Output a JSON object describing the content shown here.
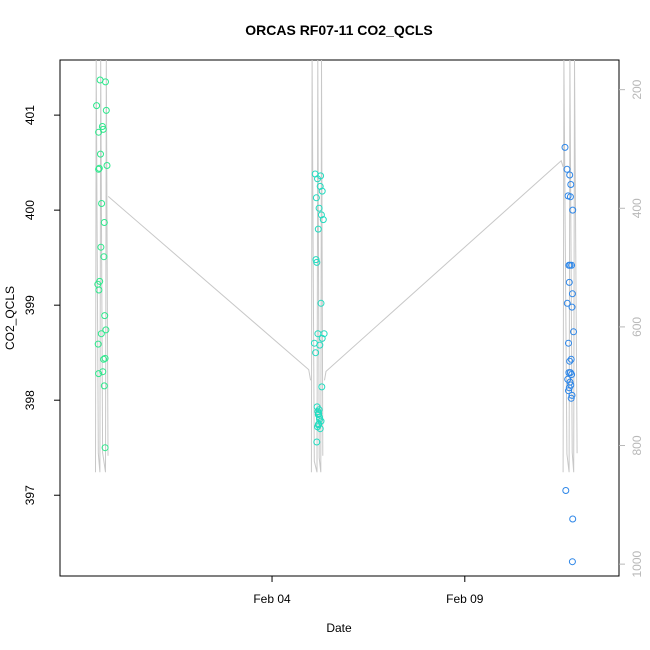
{
  "chart_data": {
    "type": "scatter",
    "title": "ORCAS RF07-11 CO2_QCLS",
    "xlabel": "Date",
    "ylabel": "CO2_QCLS",
    "x_ticks": [
      "Feb 04",
      "Feb 09"
    ],
    "x_tick_days": [
      4,
      9
    ],
    "xlim": [
      -1.5,
      13.0
    ],
    "ylim": [
      396.15,
      401.58
    ],
    "y_ticks": [
      397,
      398,
      399,
      400,
      401
    ],
    "y2_ticks": [
      200,
      400,
      600,
      800,
      1000
    ],
    "y2_lim": [
      1020,
      150
    ],
    "grid": false,
    "legend": "none",
    "colors": {
      "rf07": "#2ee88c",
      "rf08": "#22dcc0",
      "rf09": "#2d86e8",
      "pressure_line": "#c8c8c8"
    },
    "series": [
      {
        "x": [
          -0.55,
          -0.5,
          -0.45,
          -0.5,
          -0.48,
          -0.46,
          -0.38,
          -0.32,
          -0.4,
          -0.42,
          -0.35,
          -0.28,
          -0.44,
          -0.36,
          -0.3,
          -0.52,
          -0.49,
          -0.47,
          -0.34,
          -0.33,
          -0.37,
          -0.31,
          -0.51,
          -0.43,
          -0.39,
          -0.35,
          -0.33,
          -0.5
        ],
        "y": [
          401.1,
          400.82,
          400.59,
          400.43,
          400.44,
          401.37,
          400.85,
          401.35,
          400.88,
          400.07,
          399.87,
          400.47,
          399.61,
          399.51,
          401.05,
          399.22,
          399.16,
          399.25,
          398.89,
          398.44,
          398.43,
          398.74,
          398.59,
          398.7,
          398.3,
          398.15,
          397.5,
          398.28
        ]
      },
      {
        "x": [
          5.12,
          5.18,
          5.25,
          5.3,
          5.15,
          5.22,
          5.28,
          5.33,
          5.2,
          5.26,
          5.14,
          5.16,
          5.27,
          5.35,
          5.3,
          5.1,
          5.13,
          5.19,
          5.24,
          5.29,
          5.17,
          5.2,
          5.23,
          5.27,
          5.21,
          5.25,
          5.18,
          5.22,
          5.16,
          5.19,
          5.21,
          5.23,
          5.2
        ],
        "y": [
          400.38,
          400.33,
          400.25,
          400.2,
          400.13,
          400.02,
          399.95,
          399.9,
          399.8,
          400.36,
          399.48,
          399.45,
          399.02,
          398.7,
          398.65,
          398.6,
          398.5,
          398.7,
          398.58,
          398.14,
          397.93,
          397.85,
          397.8,
          397.78,
          397.75,
          397.7,
          397.72,
          397.9,
          397.56,
          397.88,
          397.86,
          397.82,
          397.74
        ]
      },
      {
        "x": [
          11.6,
          11.65,
          11.72,
          11.75,
          11.68,
          11.74,
          11.8,
          11.7,
          11.73,
          11.77,
          11.71,
          11.79,
          11.66,
          11.78,
          11.82,
          11.69,
          11.76,
          11.72,
          11.7,
          11.74,
          11.67,
          11.73,
          11.75,
          11.71,
          11.77,
          11.69,
          11.78,
          11.76,
          11.62,
          11.8,
          11.79
        ],
        "y": [
          400.66,
          400.43,
          400.37,
          400.27,
          400.15,
          400.14,
          400.0,
          399.42,
          399.42,
          399.42,
          399.24,
          399.12,
          399.02,
          398.98,
          398.72,
          398.6,
          398.43,
          398.41,
          398.29,
          398.29,
          398.22,
          398.19,
          398.16,
          398.13,
          398.27,
          398.1,
          398.05,
          398.02,
          397.05,
          396.75,
          396.3
        ]
      }
    ]
  }
}
